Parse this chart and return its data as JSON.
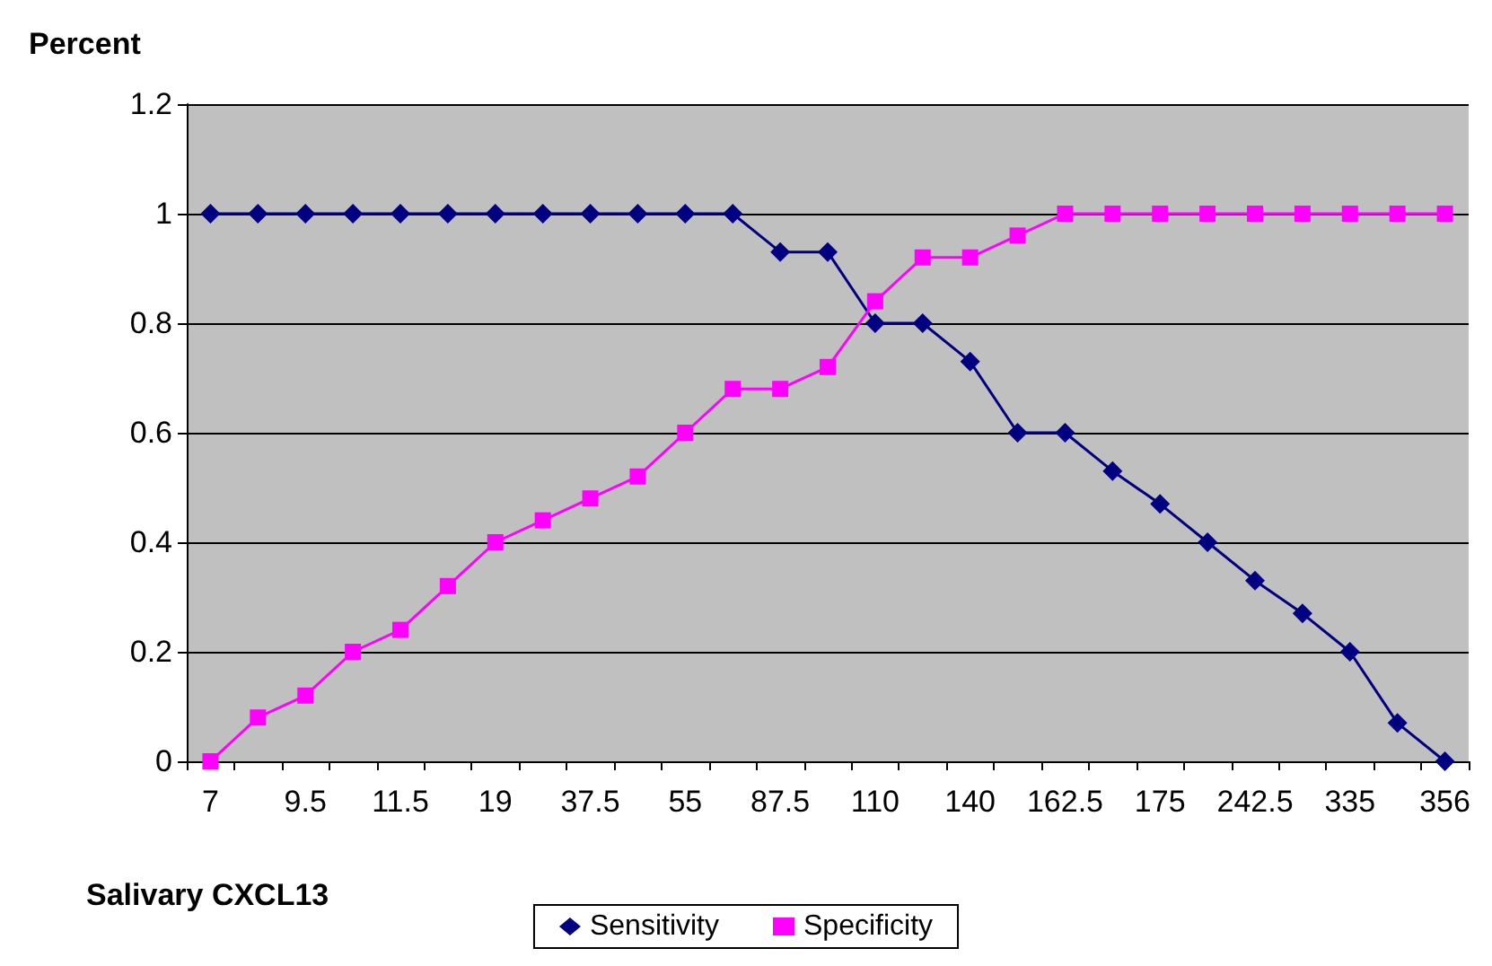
{
  "chart_data": {
    "type": "line",
    "xlabel": "Salivary CXCL13",
    "ylabel": "Percent",
    "categories": [
      "7",
      null,
      "9.5",
      null,
      "11.5",
      null,
      "19",
      null,
      "37.5",
      null,
      "55",
      null,
      "87.5",
      null,
      "110",
      null,
      "140",
      null,
      "162.5",
      null,
      "175",
      null,
      "242.5",
      null,
      "335",
      null,
      "356"
    ],
    "series": [
      {
        "name": "Sensitivity",
        "color": "#000080",
        "marker": "diamond",
        "values": [
          1,
          1,
          1,
          1,
          1,
          1,
          1,
          1,
          1,
          1,
          1,
          1,
          0.93,
          0.93,
          0.8,
          0.8,
          0.73,
          0.6,
          0.6,
          0.53,
          0.47,
          0.4,
          0.33,
          0.27,
          0.2,
          0.07,
          0
        ]
      },
      {
        "name": "Specificity",
        "color": "#ff00ff",
        "marker": "square",
        "values": [
          0,
          0.08,
          0.12,
          0.2,
          0.24,
          0.32,
          0.4,
          0.44,
          0.48,
          0.52,
          0.6,
          0.68,
          0.68,
          0.72,
          0.84,
          0.92,
          0.92,
          0.96,
          1,
          1,
          1,
          1,
          1,
          1,
          1,
          1,
          1
        ]
      }
    ],
    "ylim": [
      0,
      1.2
    ],
    "yticks": [
      0,
      0.2,
      0.4,
      0.6,
      0.8,
      1,
      1.2
    ],
    "grid": "y",
    "legend": "bottom"
  }
}
